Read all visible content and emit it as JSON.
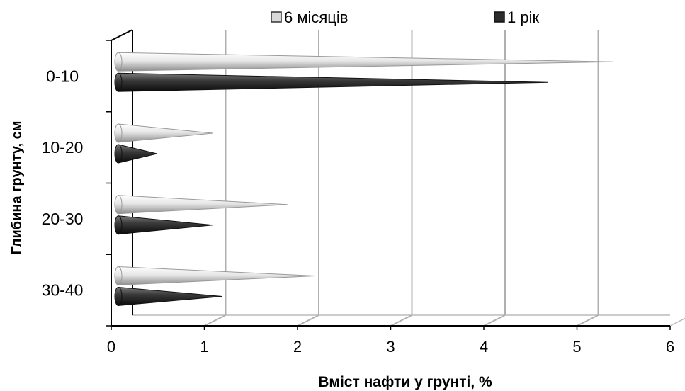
{
  "chart_data": {
    "type": "bar",
    "orientation": "horizontal",
    "style": "3d-cone",
    "categories": [
      "0-10",
      "10-20",
      "20-30",
      "30-40"
    ],
    "series": [
      {
        "name": "6 місяців",
        "values": [
          5.3,
          1.0,
          1.8,
          2.1
        ],
        "color": "#d9d9d9"
      },
      {
        "name": "1 рік",
        "values": [
          4.6,
          0.4,
          1.0,
          1.1
        ],
        "color": "#2b2b2b"
      }
    ],
    "xlabel": "Вміст нафти у грунті, %",
    "ylabel": "Глибина грунту, см",
    "xlim": [
      0,
      6
    ],
    "xticks": [
      "0",
      "1",
      "2",
      "3",
      "4",
      "5",
      "6"
    ],
    "grid": true,
    "legend": "top"
  }
}
